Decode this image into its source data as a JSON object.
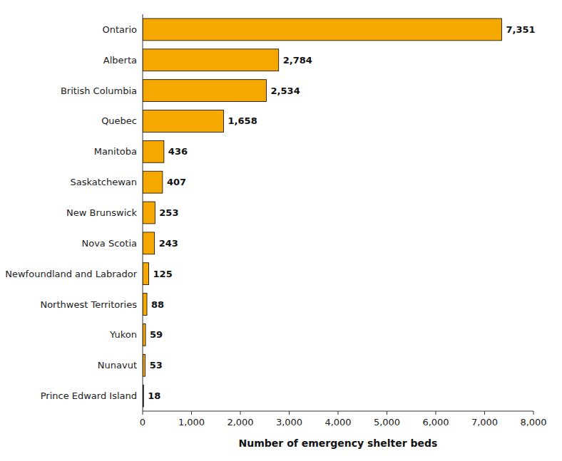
{
  "chart_data": {
    "type": "bar",
    "orientation": "horizontal",
    "categories": [
      "Prince Edward Island",
      "Nunavut",
      "Yukon",
      "Northwest Territories",
      "Newfoundland and Labrador",
      "Nova Scotia",
      "New Brunswick",
      "Saskatchewan",
      "Manitoba",
      "Quebec",
      "British Columbia",
      "Alberta",
      "Ontario"
    ],
    "values": [
      18,
      53,
      59,
      88,
      125,
      243,
      253,
      407,
      436,
      1658,
      2534,
      2784,
      7351
    ],
    "value_labels": [
      "18",
      "53",
      "59",
      "88",
      "125",
      "243",
      "253",
      "407",
      "436",
      "1,658",
      "2,534",
      "2,784",
      "7,351"
    ],
    "data_labels": true,
    "colors": [
      "#1a1a1a",
      "#F5A800",
      "#F5A800",
      "#F5A800",
      "#F5A800",
      "#F5A800",
      "#F5A800",
      "#F5A800",
      "#F5A800",
      "#F5A800",
      "#F5A800",
      "#F5A800",
      "#F5A800"
    ],
    "xlabel": "Number of emergency shelter beds",
    "xlim": [
      0,
      8000
    ],
    "xticks": [
      0,
      {
        "value": 1000,
        "label": "1,000"
      },
      {
        "value": 2000,
        "label": "2,000"
      },
      {
        "value": 3000,
        "label": "3,000"
      },
      {
        "value": 4000,
        "label": "4,000"
      },
      {
        "value": 5000,
        "label": "5,000"
      },
      {
        "value": 6000,
        "label": "6,000"
      },
      {
        "value": 7000,
        "label": "7,000"
      },
      {
        "value": 8000,
        "label": "8,000"
      }
    ],
    "grid": false
  }
}
